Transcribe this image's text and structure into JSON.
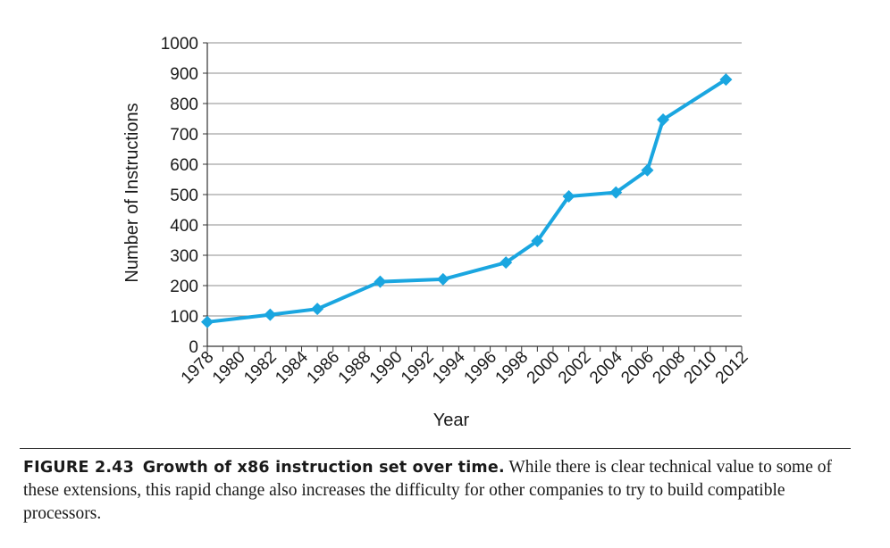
{
  "chart_data": {
    "type": "line",
    "xlabel": "Year",
    "ylabel": "Number of Instructions",
    "ylim": [
      0,
      1000
    ],
    "xlim": [
      1978,
      2012
    ],
    "y_ticks": [
      0,
      100,
      200,
      300,
      400,
      500,
      600,
      700,
      800,
      900,
      1000
    ],
    "x_tick_labels": [
      "1978",
      "1980",
      "1982",
      "1984",
      "1986",
      "1988",
      "1990",
      "1992",
      "1994",
      "1996",
      "1998",
      "2000",
      "2002",
      "2004",
      "2006",
      "2008",
      "2010",
      "2012"
    ],
    "grid": "horizontal",
    "legend": "none",
    "series": [
      {
        "color": "#1aa6e0",
        "marker": "diamond",
        "points": [
          {
            "x": 1978,
            "y": 80
          },
          {
            "x": 1982,
            "y": 104
          },
          {
            "x": 1985,
            "y": 123
          },
          {
            "x": 1989,
            "y": 213
          },
          {
            "x": 1993,
            "y": 221
          },
          {
            "x": 1997,
            "y": 276
          },
          {
            "x": 1999,
            "y": 347
          },
          {
            "x": 2001,
            "y": 494
          },
          {
            "x": 2004,
            "y": 507
          },
          {
            "x": 2006,
            "y": 580
          },
          {
            "x": 2007,
            "y": 747
          },
          {
            "x": 2011,
            "y": 879
          }
        ]
      }
    ]
  },
  "caption": {
    "label": "FIGURE 2.43",
    "title": "Growth of x86 instruction set over time.",
    "text": "While there is clear technical value to some of these extensions, this rapid change also increases the difficulty for other companies to try to build compatible processors."
  }
}
